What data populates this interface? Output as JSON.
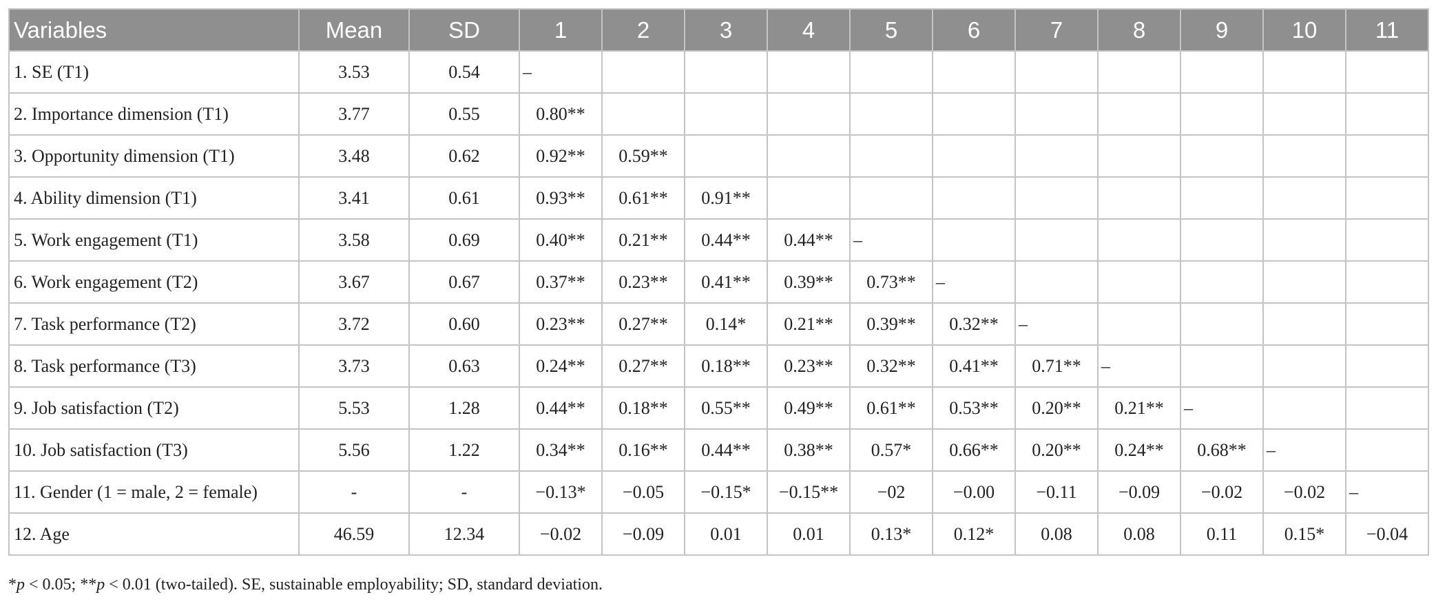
{
  "table": {
    "headers": [
      "Variables",
      "Mean",
      "SD",
      "1",
      "2",
      "3",
      "4",
      "5",
      "6",
      "7",
      "8",
      "9",
      "10",
      "11"
    ],
    "rows": [
      {
        "variable": "1. SE (T1)",
        "mean": "3.53",
        "sd": "0.54",
        "cells": [
          "–",
          "",
          "",
          "",
          "",
          "",
          "",
          "",
          "",
          "",
          ""
        ]
      },
      {
        "variable": "2. Importance dimension (T1)",
        "mean": "3.77",
        "sd": "0.55",
        "cells": [
          "0.80**",
          "",
          "",
          "",
          "",
          "",
          "",
          "",
          "",
          "",
          ""
        ]
      },
      {
        "variable": "3. Opportunity dimension (T1)",
        "mean": "3.48",
        "sd": "0.62",
        "cells": [
          "0.92**",
          "0.59**",
          "",
          "",
          "",
          "",
          "",
          "",
          "",
          "",
          ""
        ]
      },
      {
        "variable": "4. Ability dimension (T1)",
        "mean": "3.41",
        "sd": "0.61",
        "cells": [
          "0.93**",
          "0.61**",
          "0.91**",
          "",
          "",
          "",
          "",
          "",
          "",
          "",
          ""
        ]
      },
      {
        "variable": "5. Work engagement (T1)",
        "mean": "3.58",
        "sd": "0.69",
        "cells": [
          "0.40**",
          "0.21**",
          "0.44**",
          "0.44**",
          "–",
          "",
          "",
          "",
          "",
          "",
          ""
        ]
      },
      {
        "variable": "6. Work engagement (T2)",
        "mean": "3.67",
        "sd": "0.67",
        "cells": [
          "0.37**",
          "0.23**",
          "0.41**",
          "0.39**",
          "0.73**",
          "–",
          "",
          "",
          "",
          "",
          ""
        ]
      },
      {
        "variable": "7. Task performance (T2)",
        "mean": "3.72",
        "sd": "0.60",
        "cells": [
          "0.23**",
          "0.27**",
          "0.14*",
          "0.21**",
          "0.39**",
          "0.32**",
          "–",
          "",
          "",
          "",
          ""
        ]
      },
      {
        "variable": "8. Task performance (T3)",
        "mean": "3.73",
        "sd": "0.63",
        "cells": [
          "0.24**",
          "0.27**",
          "0.18**",
          "0.23**",
          "0.32**",
          "0.41**",
          "0.71**",
          "–",
          "",
          "",
          ""
        ]
      },
      {
        "variable": "9. Job satisfaction (T2)",
        "mean": "5.53",
        "sd": "1.28",
        "cells": [
          "0.44**",
          "0.18**",
          "0.55**",
          "0.49**",
          "0.61**",
          "0.53**",
          "0.20**",
          "0.21**",
          "–",
          "",
          ""
        ]
      },
      {
        "variable": "10. Job satisfaction (T3)",
        "mean": "5.56",
        "sd": "1.22",
        "cells": [
          "0.34**",
          "0.16**",
          "0.44**",
          "0.38**",
          "0.57*",
          "0.66**",
          "0.20**",
          "0.24**",
          "0.68**",
          "–",
          ""
        ]
      },
      {
        "variable": "11. Gender (1 = male, 2 = female)",
        "mean": "-",
        "sd": "-",
        "cells": [
          "−0.13*",
          "−0.05",
          "−0.15*",
          "−0.15**",
          "−02",
          "−0.00",
          "−0.11",
          "−0.09",
          "−0.02",
          "−0.02",
          "–"
        ]
      },
      {
        "variable": "12. Age",
        "mean": "46.59",
        "sd": "12.34",
        "cells": [
          "−0.02",
          "−0.09",
          "0.01",
          "0.01",
          "0.13*",
          "0.12*",
          "0.08",
          "0.08",
          "0.11",
          "0.15*",
          "−0.04"
        ]
      }
    ]
  },
  "footnote": {
    "p1": "p",
    "t1": " < 0.05; **",
    "p2": "p",
    "t2": " < 0.01 (two-tailed). SE, sustainable employability; SD, standard deviation.",
    "lead": "*"
  }
}
